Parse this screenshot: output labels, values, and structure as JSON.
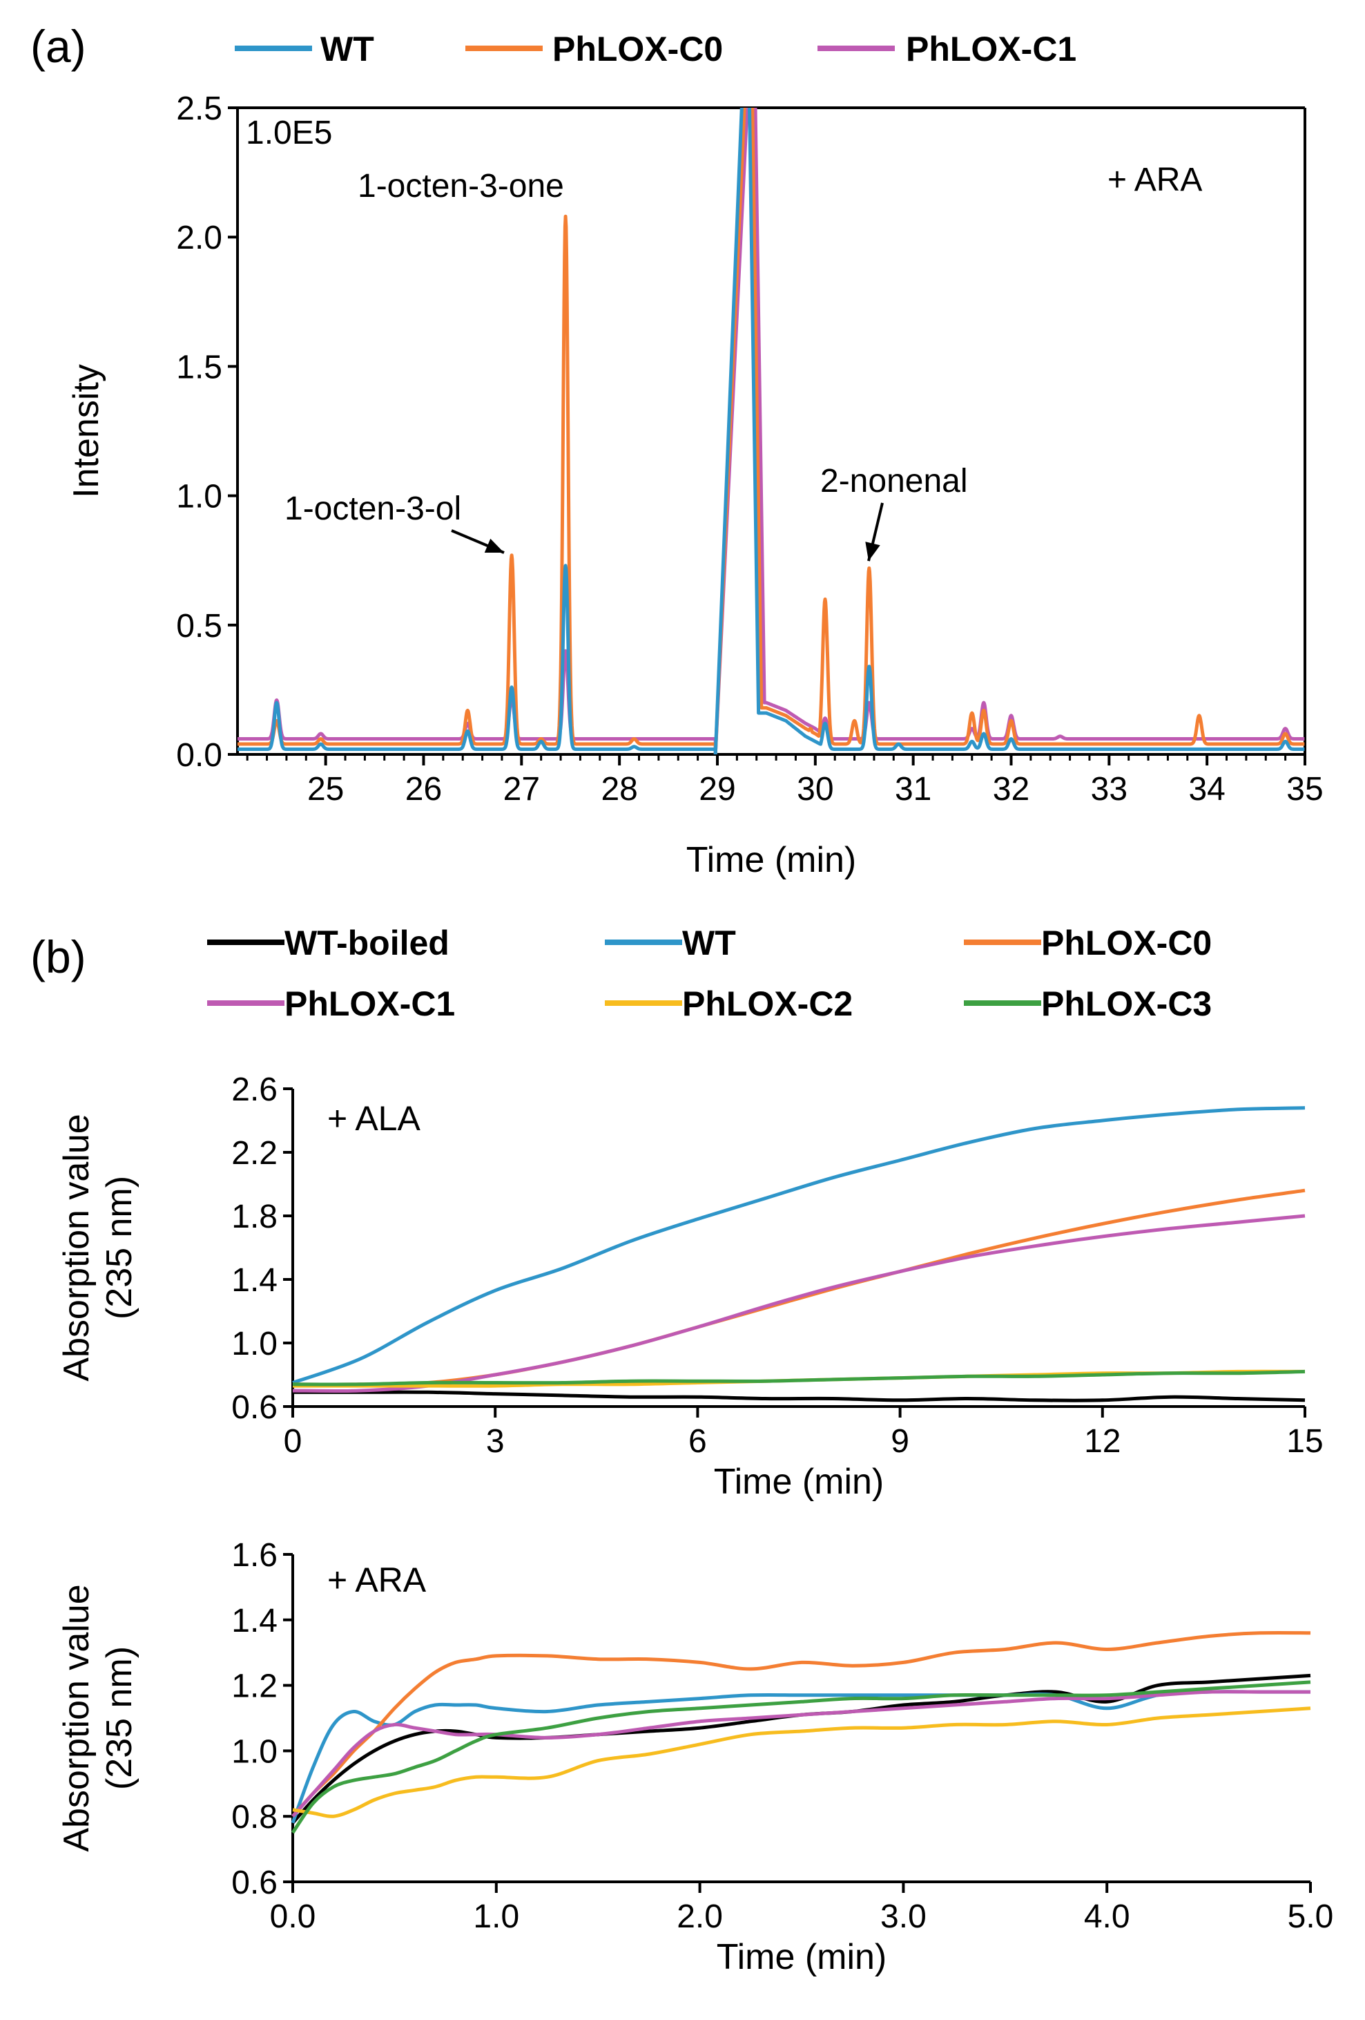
{
  "panel_labels": {
    "a": "(a)",
    "b": "(b)"
  },
  "colors": {
    "WT-boiled": "#000000",
    "WT": "#2E95C9",
    "PhLOX-C0": "#F47E32",
    "PhLOX-C1": "#BE5AB2",
    "PhLOX-C2": "#F7BC1E",
    "PhLOX-C3": "#3DA042"
  },
  "chart_data": [
    {
      "type": "line",
      "title": "",
      "xlabel": "Time (min)",
      "ylabel": "Intensity",
      "scale_label": "1.0E5",
      "condition": "+ ARA",
      "xlim": [
        24.1,
        35
      ],
      "ylim": [
        0,
        2.5
      ],
      "xticks": [
        "25",
        "26",
        "27",
        "28",
        "29",
        "30",
        "31",
        "32",
        "33",
        "34",
        "35"
      ],
      "yticks": [
        "0.0",
        "0.5",
        "1.0",
        "1.5",
        "2.0",
        "2.5"
      ],
      "legend": [
        "WT",
        "PhLOX-C0",
        "PhLOX-C1"
      ],
      "annotations": [
        {
          "text": "1-octen-3-one",
          "x": 27.45,
          "y": 2.08
        },
        {
          "text": "1-octen-3-ol",
          "x": 26.9,
          "y": 0.77
        },
        {
          "text": "2-nonenal",
          "x": 30.55,
          "y": 0.72
        }
      ],
      "series": [
        {
          "name": "WT",
          "baseline": 0.02,
          "peaks": [
            [
              24.5,
              0.2
            ],
            [
              24.95,
              0.04
            ],
            [
              26.45,
              0.09
            ],
            [
              26.9,
              0.26
            ],
            [
              27.2,
              0.05
            ],
            [
              27.45,
              0.73
            ],
            [
              28.15,
              0.03
            ],
            [
              30.1,
              0.12
            ],
            [
              30.55,
              0.34
            ],
            [
              30.85,
              0.04
            ],
            [
              31.6,
              0.05
            ],
            [
              31.72,
              0.08
            ],
            [
              32.0,
              0.06
            ],
            [
              34.8,
              0.05
            ]
          ],
          "main_peak": {
            "start": 28.98,
            "apex": 29.3,
            "end": 29.42,
            "tail": [
              [
                29.5,
                0.16
              ],
              [
                29.7,
                0.13
              ],
              [
                29.9,
                0.07
              ],
              [
                30.0,
                0.05
              ]
            ]
          }
        },
        {
          "name": "PhLOX-C0",
          "baseline": 0.04,
          "peaks": [
            [
              24.5,
              0.13
            ],
            [
              24.95,
              0.06
            ],
            [
              26.45,
              0.17
            ],
            [
              26.9,
              0.77
            ],
            [
              27.2,
              0.06
            ],
            [
              27.45,
              2.08
            ],
            [
              28.15,
              0.06
            ],
            [
              29.95,
              0.1
            ],
            [
              30.1,
              0.6
            ],
            [
              30.4,
              0.13
            ],
            [
              30.55,
              0.72
            ],
            [
              31.6,
              0.16
            ],
            [
              31.72,
              0.17
            ],
            [
              32.0,
              0.13
            ],
            [
              33.92,
              0.15
            ],
            [
              34.8,
              0.08
            ]
          ],
          "main_peak": {
            "start": 28.98,
            "apex": 29.33,
            "end": 29.45,
            "tail": [
              [
                29.5,
                0.18
              ],
              [
                29.7,
                0.15
              ],
              [
                29.9,
                0.1
              ],
              [
                30.0,
                0.08
              ]
            ]
          }
        },
        {
          "name": "PhLOX-C1",
          "baseline": 0.06,
          "peaks": [
            [
              24.5,
              0.21
            ],
            [
              24.95,
              0.08
            ],
            [
              26.45,
              0.12
            ],
            [
              26.9,
              0.22
            ],
            [
              27.45,
              0.4
            ],
            [
              29.8,
              0.12
            ],
            [
              30.1,
              0.14
            ],
            [
              30.55,
              0.2
            ],
            [
              31.6,
              0.1
            ],
            [
              31.72,
              0.2
            ],
            [
              32.0,
              0.15
            ],
            [
              32.5,
              0.07
            ],
            [
              34.8,
              0.1
            ]
          ],
          "main_peak": {
            "start": 28.98,
            "apex": 29.36,
            "end": 29.48,
            "tail": [
              [
                29.5,
                0.2
              ],
              [
                29.7,
                0.17
              ],
              [
                29.9,
                0.12
              ],
              [
                30.0,
                0.1
              ]
            ]
          }
        }
      ]
    },
    {
      "type": "line",
      "title": "",
      "xlabel": "Time (min)",
      "ylabel": [
        "Absorption value",
        "(235 nm)"
      ],
      "condition": "+ ALA",
      "xlim": [
        0,
        15
      ],
      "ylim": [
        0.6,
        2.6
      ],
      "xticks": [
        "0",
        "3",
        "6",
        "9",
        "12",
        "15"
      ],
      "yticks": [
        "0.6",
        "1.0",
        "1.4",
        "1.8",
        "2.2",
        "2.6"
      ],
      "legend": [
        "WT-boiled",
        "WT",
        "PhLOX-C0",
        "PhLOX-C1",
        "PhLOX-C2",
        "PhLOX-C3"
      ],
      "x": [
        0,
        1,
        2,
        3,
        4,
        5,
        6,
        7,
        8,
        9,
        10,
        11,
        12,
        13,
        14,
        15
      ],
      "series": [
        {
          "name": "WT-boiled",
          "values": [
            0.69,
            0.69,
            0.69,
            0.68,
            0.67,
            0.66,
            0.66,
            0.65,
            0.65,
            0.64,
            0.65,
            0.64,
            0.64,
            0.66,
            0.65,
            0.64
          ]
        },
        {
          "name": "WT",
          "values": [
            0.75,
            0.9,
            1.13,
            1.33,
            1.47,
            1.64,
            1.78,
            1.91,
            2.04,
            2.15,
            2.26,
            2.35,
            2.4,
            2.44,
            2.47,
            2.48
          ]
        },
        {
          "name": "PhLOX-C0",
          "values": [
            0.74,
            0.74,
            0.75,
            0.8,
            0.88,
            0.98,
            1.1,
            1.22,
            1.34,
            1.45,
            1.56,
            1.66,
            1.75,
            1.83,
            1.9,
            1.96
          ]
        },
        {
          "name": "PhLOX-C1",
          "values": [
            0.7,
            0.7,
            0.73,
            0.8,
            0.88,
            0.98,
            1.1,
            1.23,
            1.35,
            1.45,
            1.54,
            1.61,
            1.67,
            1.72,
            1.76,
            1.8
          ]
        },
        {
          "name": "PhLOX-C2",
          "values": [
            0.73,
            0.73,
            0.73,
            0.73,
            0.74,
            0.74,
            0.75,
            0.76,
            0.77,
            0.78,
            0.79,
            0.8,
            0.81,
            0.81,
            0.82,
            0.82
          ]
        },
        {
          "name": "PhLOX-C3",
          "values": [
            0.74,
            0.74,
            0.75,
            0.75,
            0.75,
            0.76,
            0.76,
            0.76,
            0.77,
            0.78,
            0.79,
            0.79,
            0.8,
            0.81,
            0.81,
            0.82
          ]
        }
      ]
    },
    {
      "type": "line",
      "title": "",
      "xlabel": "Time (min)",
      "ylabel": [
        "Absorption value",
        "(235 nm)"
      ],
      "condition": "+ ARA",
      "xlim": [
        0,
        5
      ],
      "ylim": [
        0.6,
        1.6
      ],
      "xticks": [
        "0.0",
        "1.0",
        "2.0",
        "3.0",
        "4.0",
        "5.0"
      ],
      "yticks": [
        "0.6",
        "0.8",
        "1.0",
        "1.2",
        "1.4",
        "1.6"
      ],
      "x": [
        0,
        0.1,
        0.2,
        0.3,
        0.4,
        0.5,
        0.6,
        0.7,
        0.8,
        0.9,
        1.0,
        1.25,
        1.5,
        1.75,
        2.0,
        2.25,
        2.5,
        2.75,
        3.0,
        3.25,
        3.5,
        3.75,
        4.0,
        4.25,
        4.5,
        4.75,
        5.0
      ],
      "series": [
        {
          "name": "WT-boiled",
          "values": [
            0.78,
            0.85,
            0.91,
            0.96,
            1.0,
            1.03,
            1.05,
            1.06,
            1.06,
            1.05,
            1.04,
            1.04,
            1.05,
            1.06,
            1.07,
            1.09,
            1.11,
            1.12,
            1.14,
            1.15,
            1.17,
            1.18,
            1.15,
            1.2,
            1.21,
            1.22,
            1.23
          ]
        },
        {
          "name": "WT",
          "values": [
            0.78,
            0.95,
            1.08,
            1.12,
            1.09,
            1.08,
            1.12,
            1.14,
            1.14,
            1.14,
            1.13,
            1.12,
            1.14,
            1.15,
            1.16,
            1.17,
            1.17,
            1.17,
            1.17,
            1.17,
            1.17,
            1.17,
            1.13,
            1.17,
            1.18,
            1.18,
            1.18
          ]
        },
        {
          "name": "PhLOX-C0",
          "values": [
            0.8,
            0.87,
            0.93,
            1.0,
            1.06,
            1.13,
            1.19,
            1.24,
            1.27,
            1.28,
            1.29,
            1.29,
            1.28,
            1.28,
            1.27,
            1.25,
            1.27,
            1.26,
            1.27,
            1.3,
            1.31,
            1.33,
            1.31,
            1.33,
            1.35,
            1.36,
            1.36
          ]
        },
        {
          "name": "PhLOX-C1",
          "values": [
            0.8,
            0.87,
            0.94,
            1.01,
            1.06,
            1.08,
            1.07,
            1.06,
            1.05,
            1.05,
            1.05,
            1.04,
            1.05,
            1.07,
            1.09,
            1.1,
            1.11,
            1.12,
            1.13,
            1.14,
            1.15,
            1.16,
            1.16,
            1.17,
            1.18,
            1.18,
            1.18
          ]
        },
        {
          "name": "PhLOX-C2",
          "values": [
            0.82,
            0.81,
            0.8,
            0.82,
            0.85,
            0.87,
            0.88,
            0.89,
            0.91,
            0.92,
            0.92,
            0.92,
            0.97,
            0.99,
            1.02,
            1.05,
            1.06,
            1.07,
            1.07,
            1.08,
            1.08,
            1.09,
            1.08,
            1.1,
            1.11,
            1.12,
            1.13
          ]
        },
        {
          "name": "PhLOX-C3",
          "values": [
            0.75,
            0.84,
            0.89,
            0.91,
            0.92,
            0.93,
            0.95,
            0.97,
            1.0,
            1.03,
            1.05,
            1.07,
            1.1,
            1.12,
            1.13,
            1.14,
            1.15,
            1.16,
            1.16,
            1.17,
            1.17,
            1.17,
            1.17,
            1.18,
            1.19,
            1.2,
            1.21
          ]
        }
      ]
    }
  ]
}
